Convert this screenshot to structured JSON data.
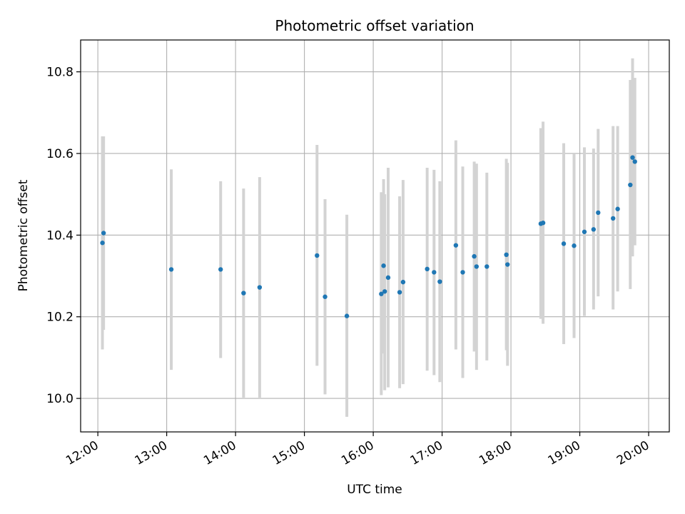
{
  "chart_data": {
    "type": "scatter",
    "title": "Photometric offset variation",
    "xlabel": "UTC time",
    "ylabel": "Photometric offset",
    "x_tick_labels": [
      "12:00",
      "13:00",
      "14:00",
      "15:00",
      "16:00",
      "17:00",
      "18:00",
      "19:00",
      "20:00"
    ],
    "y_tick_labels": [
      "10.0",
      "10.2",
      "10.4",
      "10.6",
      "10.8"
    ],
    "ylim": [
      9.918,
      10.878
    ],
    "xlim": [
      "11:45",
      "20:18"
    ],
    "grid": true,
    "colors": {
      "marker": "#1f77b4",
      "errorbar": "#d3d3d3",
      "grid": "#b0b0b0"
    },
    "series": [
      {
        "points": [
          {
            "x": "12:04",
            "y": 10.381,
            "low": 10.12,
            "high": 10.642
          },
          {
            "x": "12:05",
            "y": 10.405,
            "low": 10.168,
            "high": 10.642
          },
          {
            "x": "13:04",
            "y": 10.316,
            "low": 10.07,
            "high": 10.561
          },
          {
            "x": "13:47",
            "y": 10.316,
            "low": 10.099,
            "high": 10.532
          },
          {
            "x": "14:07",
            "y": 10.258,
            "low": 10.002,
            "high": 10.514
          },
          {
            "x": "14:21",
            "y": 10.272,
            "low": 10.002,
            "high": 10.542
          },
          {
            "x": "15:11",
            "y": 10.35,
            "low": 10.08,
            "high": 10.621
          },
          {
            "x": "15:18",
            "y": 10.249,
            "low": 10.01,
            "high": 10.488
          },
          {
            "x": "15:37",
            "y": 10.202,
            "low": 9.955,
            "high": 10.45
          },
          {
            "x": "16:07",
            "y": 10.256,
            "low": 10.008,
            "high": 10.505
          },
          {
            "x": "16:09",
            "y": 10.325,
            "low": 10.11,
            "high": 10.537
          },
          {
            "x": "16:10",
            "y": 10.262,
            "low": 10.02,
            "high": 10.5
          },
          {
            "x": "16:13",
            "y": 10.296,
            "low": 10.027,
            "high": 10.565
          },
          {
            "x": "16:23",
            "y": 10.26,
            "low": 10.025,
            "high": 10.495
          },
          {
            "x": "16:26",
            "y": 10.285,
            "low": 10.035,
            "high": 10.535
          },
          {
            "x": "16:47",
            "y": 10.317,
            "low": 10.068,
            "high": 10.565
          },
          {
            "x": "16:53",
            "y": 10.309,
            "low": 10.057,
            "high": 10.56
          },
          {
            "x": "16:58",
            "y": 10.286,
            "low": 10.04,
            "high": 10.532
          },
          {
            "x": "17:12",
            "y": 10.375,
            "low": 10.12,
            "high": 10.632
          },
          {
            "x": "17:18",
            "y": 10.309,
            "low": 10.05,
            "high": 10.568
          },
          {
            "x": "17:28",
            "y": 10.348,
            "low": 10.115,
            "high": 10.58
          },
          {
            "x": "17:30",
            "y": 10.323,
            "low": 10.07,
            "high": 10.575
          },
          {
            "x": "17:39",
            "y": 10.323,
            "low": 10.093,
            "high": 10.553
          },
          {
            "x": "17:56",
            "y": 10.352,
            "low": 10.118,
            "high": 10.587
          },
          {
            "x": "17:57",
            "y": 10.328,
            "low": 10.08,
            "high": 10.577
          },
          {
            "x": "18:26",
            "y": 10.428,
            "low": 10.195,
            "high": 10.662
          },
          {
            "x": "18:28",
            "y": 10.43,
            "low": 10.183,
            "high": 10.678
          },
          {
            "x": "18:46",
            "y": 10.379,
            "low": 10.133,
            "high": 10.625
          },
          {
            "x": "18:55",
            "y": 10.374,
            "low": 10.148,
            "high": 10.6
          },
          {
            "x": "19:04",
            "y": 10.408,
            "low": 10.202,
            "high": 10.615
          },
          {
            "x": "19:12",
            "y": 10.414,
            "low": 10.218,
            "high": 10.612
          },
          {
            "x": "19:16",
            "y": 10.455,
            "low": 10.25,
            "high": 10.66
          },
          {
            "x": "19:29",
            "y": 10.441,
            "low": 10.218,
            "high": 10.667
          },
          {
            "x": "19:33",
            "y": 10.464,
            "low": 10.262,
            "high": 10.667
          },
          {
            "x": "19:44",
            "y": 10.523,
            "low": 10.268,
            "high": 10.78
          },
          {
            "x": "19:46",
            "y": 10.59,
            "low": 10.348,
            "high": 10.833
          },
          {
            "x": "19:48",
            "y": 10.58,
            "low": 10.375,
            "high": 10.785
          }
        ]
      }
    ]
  }
}
